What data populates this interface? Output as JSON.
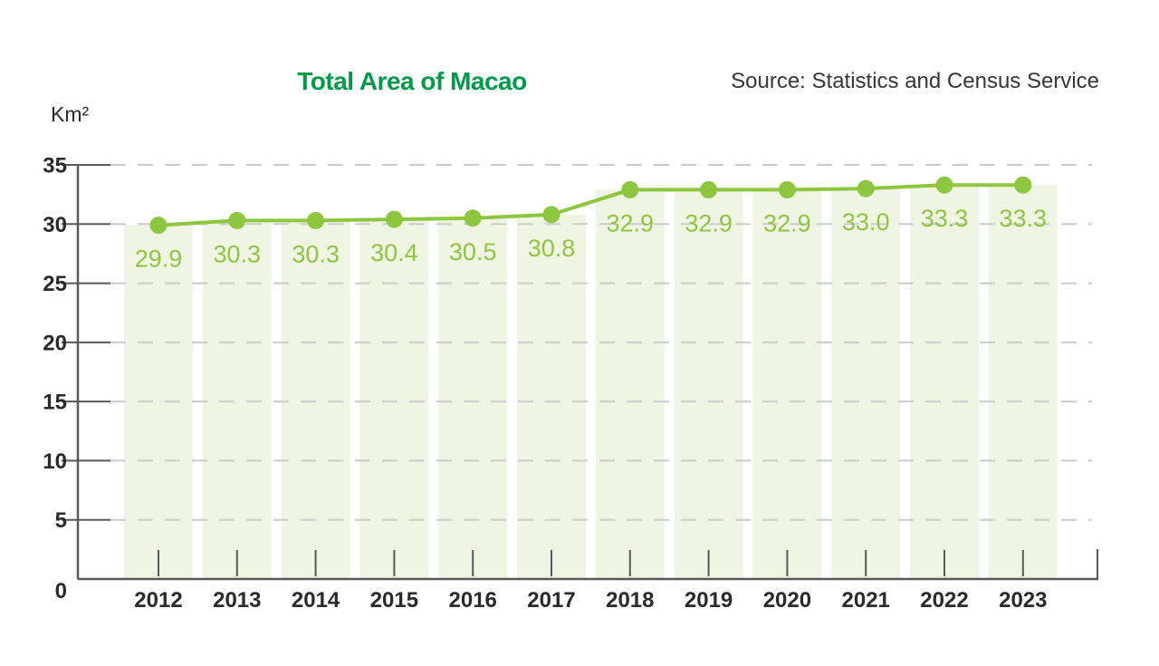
{
  "chart_data": {
    "type": "bar+line",
    "title": "Total Area of Macao",
    "source": "Source: Statistics and Census Service",
    "unit_label": "Km²",
    "xlabel": "",
    "ylabel": "Km²",
    "categories": [
      "2012",
      "2013",
      "2014",
      "2015",
      "2016",
      "2017",
      "2018",
      "2019",
      "2020",
      "2021",
      "2022",
      "2023"
    ],
    "values": [
      29.9,
      30.3,
      30.3,
      30.4,
      30.5,
      30.8,
      32.9,
      32.9,
      32.9,
      33.0,
      33.3,
      33.3
    ],
    "value_labels": [
      "29.9",
      "30.3",
      "30.3",
      "30.4",
      "30.5",
      "30.8",
      "32.9",
      "32.9",
      "32.9",
      "33.0",
      "33.3",
      "33.3"
    ],
    "ylim": [
      0,
      35
    ],
    "yticks": [
      0,
      5,
      10,
      15,
      20,
      25,
      30,
      35
    ],
    "grid": "horizontal-dashed",
    "legend": "none",
    "colors": {
      "bar_fill": "#f0f4e3",
      "line": "#8dc63f",
      "marker": "#8dc63f",
      "value_label": "#8dc63f",
      "title": "#009b48",
      "source_text": "#363636",
      "axis": "#58595b",
      "gridline": "#cbcbcb",
      "tick_text": "#2b2a29"
    }
  }
}
